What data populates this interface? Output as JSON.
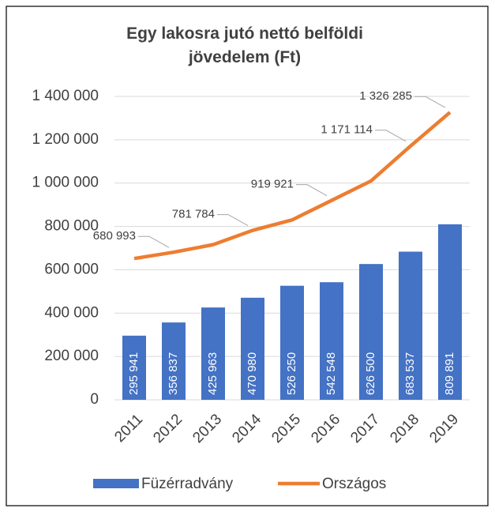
{
  "chart_data": {
    "type": "bar-line",
    "title": "Egy lakosra jutó nettó belföldi jövedelem (Ft)",
    "categories": [
      "2011",
      "2012",
      "2013",
      "2014",
      "2015",
      "2016",
      "2017",
      "2018",
      "2019"
    ],
    "series": [
      {
        "name": "Füzérradvány",
        "type": "bar",
        "color": "#4472c4",
        "values": [
          295941,
          356837,
          425963,
          470980,
          526250,
          542548,
          626500,
          683537,
          809891
        ],
        "value_labels": [
          "295 941",
          "356 837",
          "425 963",
          "470 980",
          "526 250",
          "542 548",
          "626 500",
          "683 537",
          "809 891"
        ]
      },
      {
        "name": "Országos",
        "type": "line",
        "color": "#ed7d31",
        "values": [
          652000,
          680993,
          716000,
          781784,
          830000,
          919921,
          1010000,
          1171114,
          1326285
        ],
        "value_labels": [
          null,
          "680 993",
          null,
          "781 784",
          null,
          "919 921",
          null,
          "1 171 114",
          "1 326 285"
        ]
      }
    ],
    "ylim": [
      0,
      1400000
    ],
    "yticks": [
      0,
      {
        "value": 200000,
        "label": "200 000"
      },
      {
        "value": 400000,
        "label": "400 000"
      },
      {
        "value": 600000,
        "label": "600 000"
      },
      {
        "value": 800000,
        "label": "800 000"
      },
      {
        "value": 1000000,
        "label": "1 000 000"
      },
      {
        "value": 1200000,
        "label": "1 200 000"
      },
      {
        "value": 1400000,
        "label": "1 400 000"
      }
    ],
    "grid": true,
    "legend": "bottom"
  }
}
